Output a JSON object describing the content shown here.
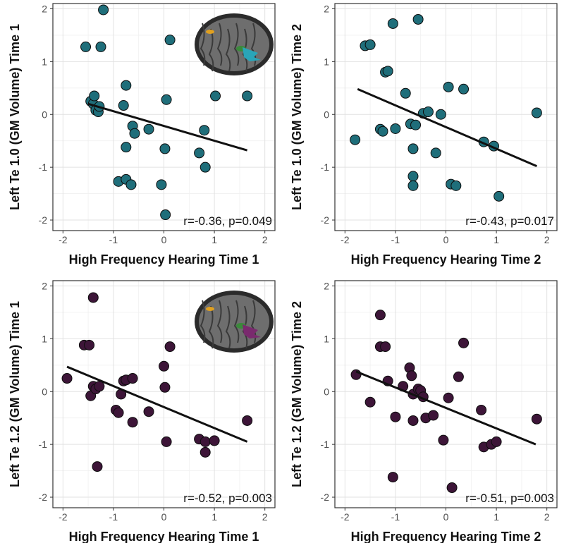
{
  "panels": [
    {
      "type": "scatter",
      "ylabel": "Left Te 1.0 (GM Volume) Time 1",
      "xlabel": "High Frequency Hearing Time 1",
      "annotation": "r=-0.36, p=0.049",
      "xlim": [
        -2.2,
        2.2
      ],
      "ylim": [
        -2.2,
        2.1
      ],
      "xticks": [
        -2,
        -1,
        0,
        1,
        2
      ],
      "yticks": [
        -2,
        -1,
        0,
        1,
        2
      ],
      "point_color": "#1f6e7a",
      "show_brain": true,
      "brain_marker_color": "#2aa5b8",
      "points": [
        [
          -1.55,
          1.28
        ],
        [
          -1.25,
          1.28
        ],
        [
          -1.2,
          1.98
        ],
        [
          0.12,
          1.41
        ],
        [
          -1.45,
          0.25
        ],
        [
          -1.4,
          0.2
        ],
        [
          -1.38,
          0.35
        ],
        [
          -1.35,
          0.08
        ],
        [
          -1.3,
          0.05
        ],
        [
          -1.28,
          0.15
        ],
        [
          -0.8,
          0.17
        ],
        [
          -0.75,
          0.55
        ],
        [
          -0.75,
          -0.62
        ],
        [
          -0.62,
          -0.22
        ],
        [
          -0.58,
          -0.36
        ],
        [
          -0.3,
          -0.28
        ],
        [
          -0.9,
          -1.27
        ],
        [
          -0.75,
          -1.23
        ],
        [
          -0.65,
          -1.33
        ],
        [
          0.02,
          -0.65
        ],
        [
          0.05,
          0.28
        ],
        [
          -0.05,
          -1.33
        ],
        [
          0.03,
          -1.9
        ],
        [
          0.7,
          -0.73
        ],
        [
          0.8,
          -0.3
        ],
        [
          0.82,
          -1.0
        ],
        [
          1.02,
          0.35
        ],
        [
          1.65,
          0.35
        ]
      ],
      "fit": [
        [
          -1.5,
          0.2
        ],
        [
          1.65,
          -0.68
        ]
      ]
    },
    {
      "type": "scatter",
      "ylabel": "Left Te 1.0 (GM Volume) Time 2",
      "xlabel": "High Frequency Hearing Time 2",
      "annotation": "r=-0.43, p=0.017",
      "xlim": [
        -2.2,
        2.2
      ],
      "ylim": [
        -2.2,
        2.1
      ],
      "xticks": [
        -2,
        -1,
        0,
        1,
        2
      ],
      "yticks": [
        -2,
        -1,
        0,
        1,
        2
      ],
      "point_color": "#1f6e7a",
      "show_brain": false,
      "points": [
        [
          -1.6,
          1.3
        ],
        [
          -1.5,
          1.32
        ],
        [
          -1.2,
          0.8
        ],
        [
          -1.15,
          0.82
        ],
        [
          -1.05,
          1.72
        ],
        [
          -0.55,
          1.8
        ],
        [
          -1.8,
          -0.48
        ],
        [
          -1.3,
          -0.28
        ],
        [
          -1.25,
          -0.32
        ],
        [
          -1.0,
          -0.27
        ],
        [
          -0.8,
          0.4
        ],
        [
          -0.7,
          -0.18
        ],
        [
          -0.6,
          -0.2
        ],
        [
          -0.65,
          -0.65
        ],
        [
          -0.45,
          0.02
        ],
        [
          -0.35,
          0.05
        ],
        [
          -0.1,
          0.0
        ],
        [
          -0.2,
          -0.73
        ],
        [
          -0.65,
          -1.17
        ],
        [
          -0.65,
          -1.35
        ],
        [
          0.05,
          0.52
        ],
        [
          0.35,
          0.48
        ],
        [
          0.1,
          -1.32
        ],
        [
          0.2,
          -1.35
        ],
        [
          0.75,
          -0.52
        ],
        [
          0.95,
          -0.6
        ],
        [
          1.05,
          -1.55
        ],
        [
          1.8,
          0.03
        ]
      ],
      "fit": [
        [
          -1.75,
          0.48
        ],
        [
          1.8,
          -0.98
        ]
      ]
    },
    {
      "type": "scatter",
      "ylabel": "Left Te 1.2 (GM Volume) Time 1",
      "xlabel": "High Frequency Hearing Time 1",
      "annotation": "r=-0.52, p=0.003",
      "xlim": [
        -2.2,
        2.2
      ],
      "ylim": [
        -2.2,
        2.1
      ],
      "xticks": [
        -2,
        -1,
        0,
        1,
        2
      ],
      "yticks": [
        -2,
        -1,
        0,
        1,
        2
      ],
      "point_color": "#3d1538",
      "show_brain": true,
      "brain_marker_color": "#7a2a6e",
      "points": [
        [
          -1.92,
          0.25
        ],
        [
          -1.58,
          0.88
        ],
        [
          -1.48,
          0.88
        ],
        [
          -1.4,
          1.78
        ],
        [
          -1.45,
          -0.08
        ],
        [
          -1.4,
          0.1
        ],
        [
          -1.35,
          0.05
        ],
        [
          -1.28,
          0.1
        ],
        [
          -1.32,
          -1.42
        ],
        [
          -0.95,
          -0.35
        ],
        [
          -0.9,
          -0.4
        ],
        [
          -0.85,
          -0.05
        ],
        [
          -0.8,
          0.2
        ],
        [
          -0.75,
          0.22
        ],
        [
          -0.62,
          0.25
        ],
        [
          -0.62,
          -0.58
        ],
        [
          -0.3,
          -0.38
        ],
        [
          0.0,
          0.48
        ],
        [
          0.02,
          0.08
        ],
        [
          0.05,
          -0.95
        ],
        [
          0.12,
          0.85
        ],
        [
          0.7,
          -0.9
        ],
        [
          0.82,
          -0.95
        ],
        [
          0.82,
          -1.15
        ],
        [
          1.0,
          -0.93
        ],
        [
          1.65,
          -0.55
        ]
      ],
      "fit": [
        [
          -1.92,
          0.47
        ],
        [
          1.65,
          -0.95
        ]
      ]
    },
    {
      "type": "scatter",
      "ylabel": "Left Te 1.2 (GM Volume) Time 2",
      "xlabel": "High Frequency Hearing Time 2",
      "annotation": "r=-0.51, p=0.003",
      "xlim": [
        -2.2,
        2.2
      ],
      "ylim": [
        -2.2,
        2.1
      ],
      "xticks": [
        -2,
        -1,
        0,
        1,
        2
      ],
      "yticks": [
        -2,
        -1,
        0,
        1,
        2
      ],
      "point_color": "#3d1538",
      "show_brain": false,
      "points": [
        [
          -1.78,
          0.32
        ],
        [
          -1.5,
          -0.2
        ],
        [
          -1.3,
          1.45
        ],
        [
          -1.3,
          0.85
        ],
        [
          -1.2,
          0.85
        ],
        [
          -1.15,
          0.2
        ],
        [
          -1.0,
          -0.48
        ],
        [
          -0.85,
          0.1
        ],
        [
          -0.72,
          0.45
        ],
        [
          -0.68,
          0.3
        ],
        [
          -0.65,
          -0.05
        ],
        [
          -0.55,
          0.05
        ],
        [
          -0.5,
          0.02
        ],
        [
          -0.45,
          -0.1
        ],
        [
          -0.4,
          -0.5
        ],
        [
          -0.25,
          -0.45
        ],
        [
          -0.65,
          -0.55
        ],
        [
          -1.05,
          -1.62
        ],
        [
          -0.05,
          -0.92
        ],
        [
          0.05,
          -0.12
        ],
        [
          0.12,
          -1.82
        ],
        [
          0.25,
          0.28
        ],
        [
          0.35,
          0.92
        ],
        [
          0.7,
          -0.35
        ],
        [
          0.75,
          -1.05
        ],
        [
          0.9,
          -1.0
        ],
        [
          1.0,
          -0.95
        ],
        [
          1.8,
          -0.52
        ]
      ],
      "fit": [
        [
          -1.78,
          0.38
        ],
        [
          1.78,
          -1.0
        ]
      ]
    }
  ]
}
